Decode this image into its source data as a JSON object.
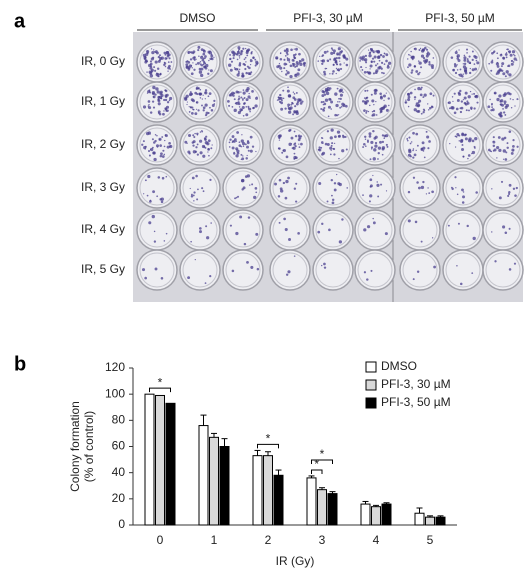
{
  "panel_a": {
    "label": "a",
    "columns": [
      "DMSO",
      "PFI-3, 30 µM",
      "PFI-3, 50 µM"
    ],
    "rows": [
      "IR, 0 Gy",
      "IR, 1 Gy",
      "IR, 2 Gy",
      "IR, 3 Gy",
      "IR, 4 Gy",
      "IR, 5 Gy"
    ]
  },
  "chart_data": {
    "type": "bar",
    "label": "b",
    "x_label": "IR (Gy)",
    "y_label": [
      "Colony formation",
      "(% of control)"
    ],
    "categories": [
      "0",
      "1",
      "2",
      "3",
      "4",
      "5"
    ],
    "series": [
      {
        "name": "DMSO",
        "color": "#ffffff",
        "values": [
          100,
          76,
          53,
          36,
          16,
          9
        ],
        "errors": [
          0,
          8,
          4,
          1.5,
          2,
          4
        ]
      },
      {
        "name": "PFI-3, 30 µM",
        "color": "#d9d9d9",
        "values": [
          99,
          67,
          53,
          27,
          14,
          6
        ],
        "errors": [
          0,
          3,
          3,
          1.5,
          1,
          1
        ]
      },
      {
        "name": "PFI-3, 50 µM",
        "color": "#000000",
        "values": [
          93,
          60,
          38,
          24,
          16,
          6
        ],
        "errors": [
          0,
          6,
          4,
          1.5,
          1,
          1
        ]
      }
    ],
    "annotations": [
      {
        "text": "*",
        "category": 0,
        "series": [
          0,
          2
        ]
      },
      {
        "text": "*",
        "category": 2,
        "series": [
          0,
          2
        ]
      },
      {
        "text": "*",
        "category": 3,
        "series": [
          0,
          1
        ]
      },
      {
        "text": "*",
        "category": 3,
        "series": [
          0,
          2
        ]
      }
    ],
    "ylim": [
      0,
      120
    ],
    "yticks": [
      0,
      20,
      40,
      60,
      80,
      100,
      120
    ],
    "legend": "top-right"
  }
}
